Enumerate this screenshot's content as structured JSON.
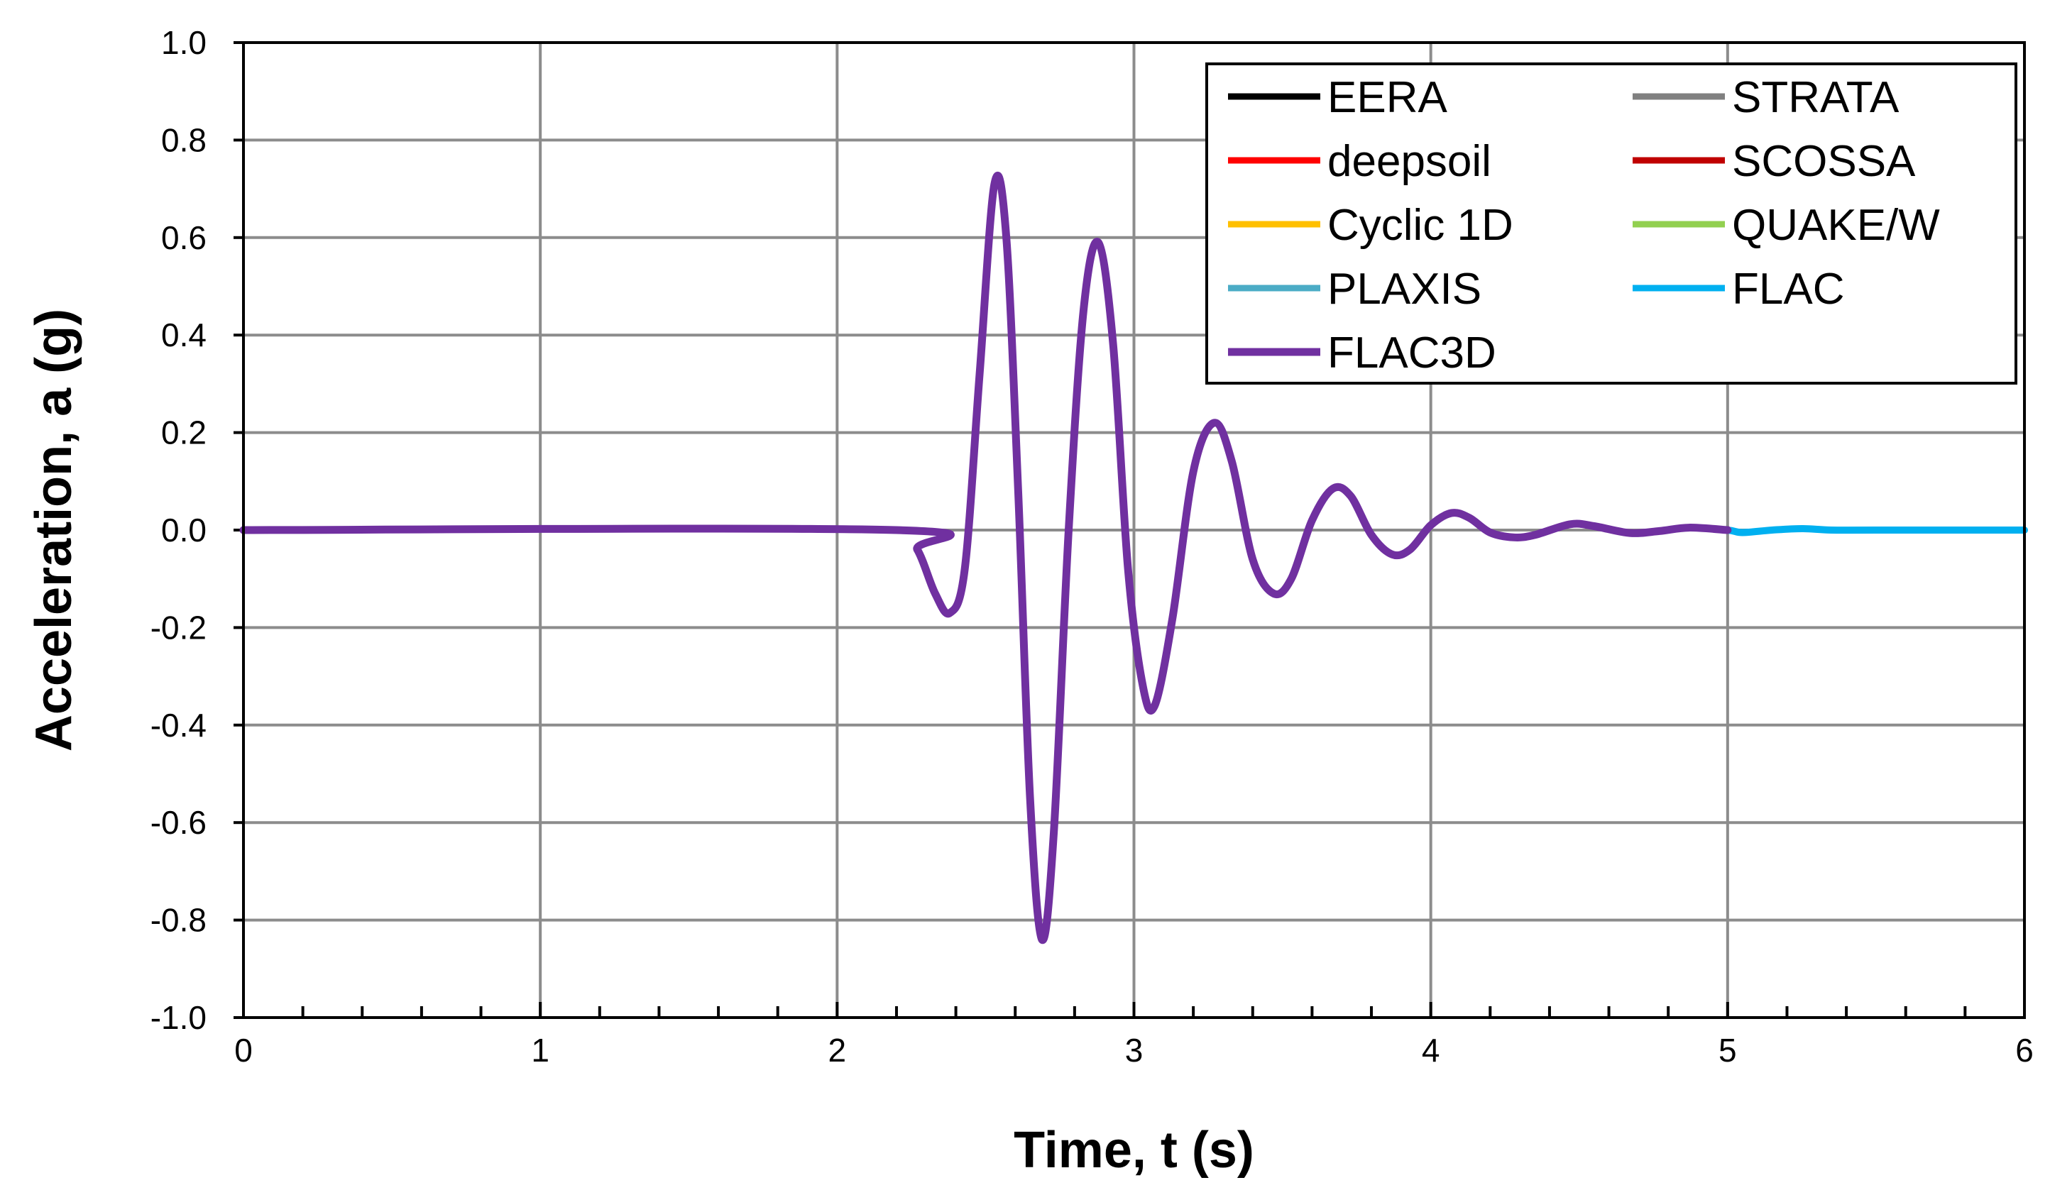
{
  "chart_data": {
    "type": "line",
    "xlabel": "Time, t (s)",
    "ylabel": "Acceleration, a (g)",
    "xlim": [
      0,
      6
    ],
    "ylim": [
      -1.0,
      1.0
    ],
    "xticks": [
      "0",
      "1",
      "2",
      "3",
      "4",
      "5",
      "6"
    ],
    "yticks": [
      "1.0",
      "0.8",
      "0.6",
      "0.4",
      "0.2",
      "0.0",
      "-0.2",
      "-0.4",
      "-0.6",
      "-0.8",
      "-1.0"
    ],
    "grid": true,
    "legend_position": "top-right",
    "series": [
      {
        "name": "EERA",
        "color": "#000000",
        "x_end": 5.0
      },
      {
        "name": "STRATA",
        "color": "#808080",
        "x_end": 5.0
      },
      {
        "name": "deepsoil",
        "color": "#ff0000",
        "x_end": 5.0
      },
      {
        "name": "SCOSSA",
        "color": "#c00000",
        "x_end": 5.0
      },
      {
        "name": "Cyclic 1D",
        "color": "#ffc000",
        "x_end": 5.0
      },
      {
        "name": "QUAKE/W",
        "color": "#92d050",
        "x_end": 5.0
      },
      {
        "name": "PLAXIS",
        "color": "#4bacc6",
        "x_end": 5.0
      },
      {
        "name": "FLAC",
        "color": "#00b0f0",
        "x_end": 6.0
      },
      {
        "name": "FLAC3D",
        "color": "#7030a0",
        "x_end": 5.0
      }
    ],
    "points": [
      [
        0.0,
        0.0
      ],
      [
        2.2,
        0.0
      ],
      [
        2.27,
        -0.04
      ],
      [
        2.33,
        -0.13
      ],
      [
        2.38,
        -0.17
      ],
      [
        2.43,
        -0.08
      ],
      [
        2.48,
        0.32
      ],
      [
        2.53,
        0.71
      ],
      [
        2.57,
        0.6
      ],
      [
        2.61,
        0.08
      ],
      [
        2.65,
        -0.55
      ],
      [
        2.69,
        -0.84
      ],
      [
        2.73,
        -0.62
      ],
      [
        2.78,
        0.0
      ],
      [
        2.83,
        0.45
      ],
      [
        2.88,
        0.59
      ],
      [
        2.93,
        0.38
      ],
      [
        2.98,
        -0.08
      ],
      [
        3.03,
        -0.32
      ],
      [
        3.07,
        -0.36
      ],
      [
        3.13,
        -0.18
      ],
      [
        3.2,
        0.12
      ],
      [
        3.27,
        0.22
      ],
      [
        3.33,
        0.14
      ],
      [
        3.4,
        -0.06
      ],
      [
        3.47,
        -0.13
      ],
      [
        3.53,
        -0.1
      ],
      [
        3.6,
        0.02
      ],
      [
        3.67,
        0.085
      ],
      [
        3.73,
        0.07
      ],
      [
        3.8,
        -0.01
      ],
      [
        3.87,
        -0.05
      ],
      [
        3.93,
        -0.04
      ],
      [
        4.0,
        0.01
      ],
      [
        4.07,
        0.035
      ],
      [
        4.13,
        0.025
      ],
      [
        4.2,
        -0.005
      ],
      [
        4.28,
        -0.015
      ],
      [
        4.35,
        -0.01
      ],
      [
        4.47,
        0.012
      ],
      [
        4.55,
        0.008
      ],
      [
        4.67,
        -0.006
      ],
      [
        4.77,
        -0.002
      ],
      [
        4.87,
        0.005
      ],
      [
        5.0,
        0.0
      ],
      [
        5.05,
        -0.005
      ],
      [
        5.15,
        0.0
      ],
      [
        5.25,
        0.003
      ],
      [
        5.35,
        0.0
      ],
      [
        5.5,
        0.0
      ],
      [
        6.0,
        0.0
      ]
    ]
  }
}
